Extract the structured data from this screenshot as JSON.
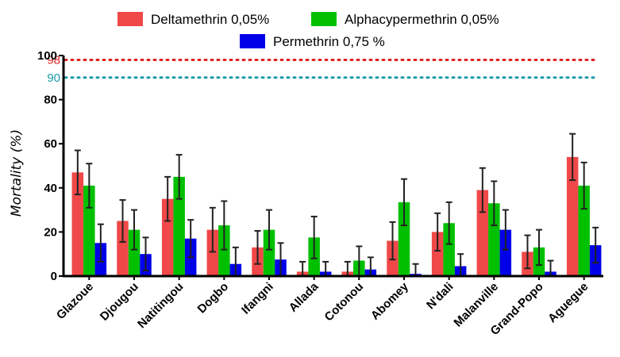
{
  "chart_data": {
    "type": "bar",
    "ylabel": "Mortality (%)",
    "xlabel": "",
    "ylim": [
      0,
      100
    ],
    "yticks": [
      0,
      20,
      40,
      60,
      80,
      100
    ],
    "legend_position": "top-center",
    "categories": [
      "Glazoue",
      "Djougou",
      "Natitingou",
      "Dogbo",
      "Ifangni",
      "Allada",
      "Cotonou",
      "Abomey",
      "N'dali",
      "Malanville",
      "Grand-Popo",
      "Aguegue"
    ],
    "series": [
      {
        "name": "Deltamethrin 0,05%",
        "color": "#f04848",
        "values": [
          47,
          25,
          35,
          21,
          13,
          2,
          2,
          16,
          20,
          39,
          11,
          54
        ],
        "error": [
          10,
          9.5,
          10,
          10,
          7.5,
          4.5,
          4.5,
          8.5,
          8.5,
          10,
          7.5,
          10.5
        ]
      },
      {
        "name": "Alphacypermethrin 0,05%",
        "color": "#00c000",
        "values": [
          41,
          21,
          45,
          23,
          21,
          17.5,
          7,
          33.5,
          24,
          33,
          13,
          41
        ],
        "error": [
          10,
          9,
          10,
          11,
          9,
          9.5,
          6.5,
          10.5,
          9.5,
          10,
          8,
          10.5
        ]
      },
      {
        "name": "Permethrin 0,75 %",
        "color": "#0000e8",
        "values": [
          15,
          10,
          17,
          5.5,
          7.5,
          2,
          3,
          1,
          4.5,
          21,
          2,
          14
        ],
        "error": [
          8.5,
          7.5,
          8.5,
          7.5,
          7.5,
          4.5,
          5.5,
          4.5,
          5.5,
          9,
          5,
          8
        ]
      }
    ],
    "reference_lines": [
      {
        "value": 98,
        "label": "98",
        "color": "#e02020"
      },
      {
        "value": 90,
        "label": "90",
        "color": "#1a9aa8"
      }
    ]
  }
}
